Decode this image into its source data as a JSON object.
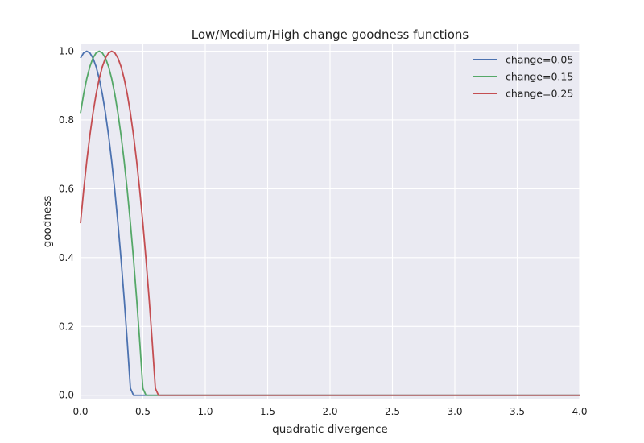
{
  "chart_data": {
    "type": "line",
    "title": "Low/Medium/High change goodness functions",
    "xlabel": "quadratic divergence",
    "ylabel": "goodness",
    "xlim": [
      0.0,
      4.0
    ],
    "ylim": [
      -0.01,
      1.02
    ],
    "xticks": [
      "0.0",
      "0.5",
      "1.0",
      "1.5",
      "2.0",
      "2.5",
      "3.0",
      "3.5",
      "4.0"
    ],
    "yticks": [
      "0.0",
      "0.2",
      "0.4",
      "0.6",
      "0.8",
      "1.0"
    ],
    "grid": true,
    "legend_position": "top-right",
    "series": [
      {
        "name": "change=0.05",
        "color": "#4c72b0",
        "x": [
          0.0,
          0.025,
          0.05,
          0.075,
          0.1,
          0.125,
          0.15,
          0.175,
          0.2,
          0.225,
          0.25,
          0.275,
          0.3,
          0.325,
          0.35,
          0.375,
          0.4,
          0.425,
          0.45,
          0.5,
          1.0,
          2.0,
          3.0,
          4.0
        ],
        "y": [
          0.98,
          0.995,
          1.0,
          0.995,
          0.98,
          0.955,
          0.92,
          0.875,
          0.82,
          0.755,
          0.68,
          0.595,
          0.5,
          0.395,
          0.28,
          0.155,
          0.02,
          0.0,
          0.0,
          0.0,
          0.0,
          0.0,
          0.0,
          0.0
        ]
      },
      {
        "name": "change=0.15",
        "color": "#55a868",
        "x": [
          0.0,
          0.025,
          0.05,
          0.075,
          0.1,
          0.125,
          0.15,
          0.175,
          0.2,
          0.225,
          0.25,
          0.275,
          0.3,
          0.325,
          0.35,
          0.375,
          0.4,
          0.425,
          0.45,
          0.475,
          0.5,
          0.525,
          0.55,
          1.0,
          2.0,
          3.0,
          4.0
        ],
        "y": [
          0.82,
          0.875,
          0.92,
          0.955,
          0.98,
          0.995,
          1.0,
          0.995,
          0.98,
          0.955,
          0.92,
          0.875,
          0.82,
          0.755,
          0.68,
          0.595,
          0.5,
          0.395,
          0.28,
          0.155,
          0.02,
          0.0,
          0.0,
          0.0,
          0.0,
          0.0,
          0.0
        ]
      },
      {
        "name": "change=0.25",
        "color": "#c44e52",
        "x": [
          0.0,
          0.025,
          0.05,
          0.075,
          0.1,
          0.125,
          0.15,
          0.175,
          0.2,
          0.225,
          0.25,
          0.275,
          0.3,
          0.325,
          0.35,
          0.375,
          0.4,
          0.425,
          0.45,
          0.475,
          0.5,
          0.525,
          0.55,
          0.575,
          0.6,
          0.625,
          0.65,
          1.0,
          2.0,
          3.0,
          4.0
        ],
        "y": [
          0.5,
          0.595,
          0.68,
          0.755,
          0.82,
          0.875,
          0.92,
          0.955,
          0.98,
          0.995,
          1.0,
          0.995,
          0.98,
          0.955,
          0.92,
          0.875,
          0.82,
          0.755,
          0.68,
          0.595,
          0.5,
          0.395,
          0.28,
          0.155,
          0.02,
          0.0,
          0.0,
          0.0,
          0.0,
          0.0,
          0.0
        ]
      }
    ]
  }
}
